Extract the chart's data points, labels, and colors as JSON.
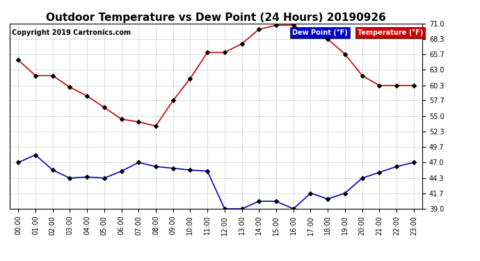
{
  "title": "Outdoor Temperature vs Dew Point (24 Hours) 20190926",
  "copyright_text": "Copyright 2019 Cartronics.com",
  "background_color": "#ffffff",
  "plot_bg_color": "#ffffff",
  "grid_color": "#bbbbbb",
  "ylim": [
    39.0,
    71.0
  ],
  "yticks": [
    39.0,
    41.7,
    44.3,
    47.0,
    49.7,
    52.3,
    55.0,
    57.7,
    60.3,
    63.0,
    65.7,
    68.3,
    71.0
  ],
  "hours": [
    0,
    1,
    2,
    3,
    4,
    5,
    6,
    7,
    8,
    9,
    10,
    11,
    12,
    13,
    14,
    15,
    16,
    17,
    18,
    19,
    20,
    21,
    22,
    23
  ],
  "temp_values": [
    64.7,
    62.0,
    62.0,
    60.0,
    58.5,
    56.5,
    54.5,
    54.0,
    53.3,
    57.7,
    61.5,
    66.0,
    66.0,
    67.5,
    70.0,
    70.7,
    70.7,
    69.0,
    68.3,
    65.7,
    62.0,
    60.3,
    60.3,
    60.3
  ],
  "dew_values": [
    47.0,
    48.3,
    45.7,
    44.3,
    44.5,
    44.3,
    45.5,
    47.0,
    46.3,
    46.0,
    45.7,
    45.5,
    39.0,
    39.0,
    40.3,
    40.3,
    39.0,
    41.7,
    40.7,
    41.7,
    44.3,
    45.3,
    46.3,
    47.0
  ],
  "temp_color": "#cc0000",
  "dew_color": "#0000cc",
  "marker": "D",
  "marker_size": 3,
  "line_width": 1.2,
  "title_fontsize": 11,
  "tick_fontsize": 7,
  "copyright_fontsize": 7,
  "legend_dew_label": "Dew Point (°F)",
  "legend_temp_label": "Temperature (°F)",
  "legend_dew_bg": "#0000cc",
  "legend_temp_bg": "#cc0000"
}
